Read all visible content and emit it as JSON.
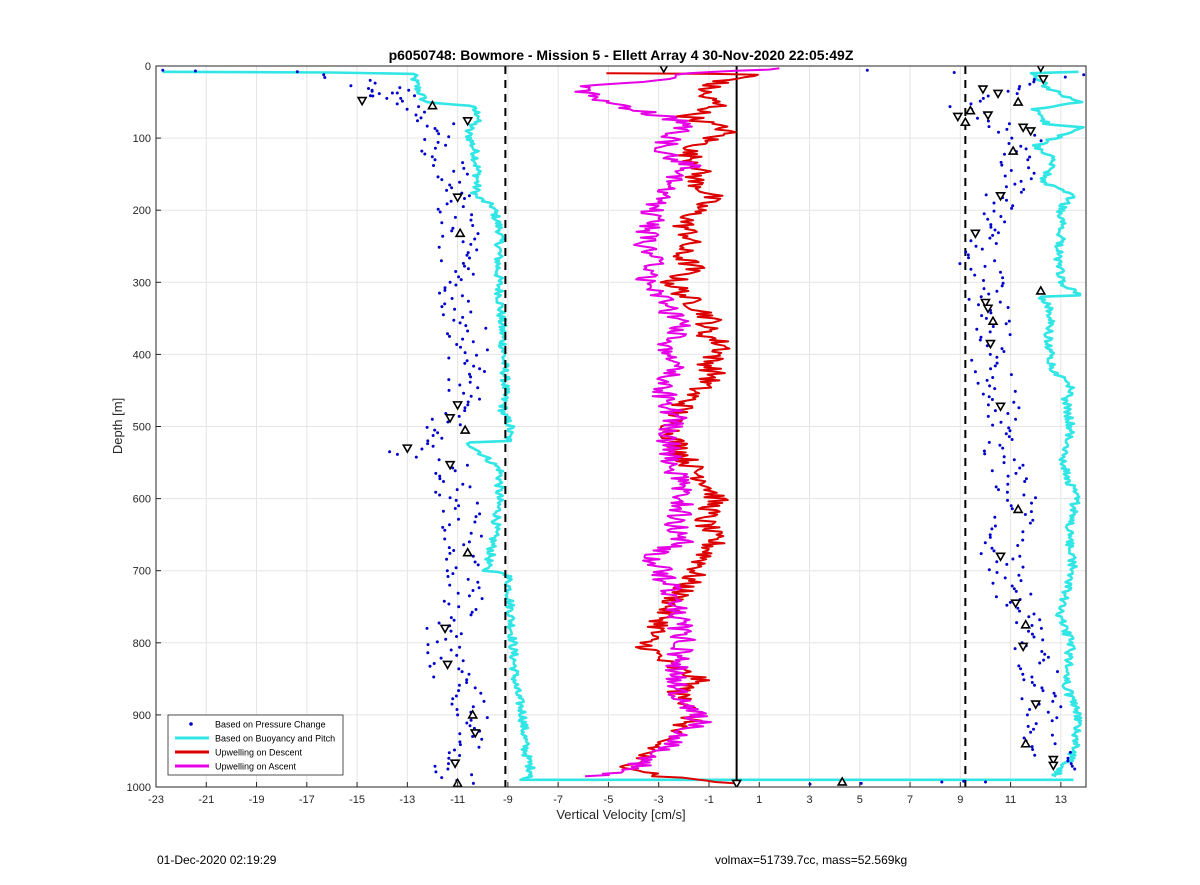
{
  "chart_data": {
    "type": "scatter",
    "title": "p6050748: Bowmore - Mission 5 - Ellett Array 4 30-Nov-2020 22:05:49Z",
    "xlabel": "Vertical Velocity [cm/s]",
    "ylabel": "Depth [m]",
    "xlim": [
      -23,
      14
    ],
    "ylim": [
      1000,
      0
    ],
    "y_reversed": true,
    "grid": true,
    "x_ticks": [
      -23,
      -21,
      -19,
      -17,
      -15,
      -13,
      -11,
      -9,
      -7,
      -5,
      -3,
      -1,
      1,
      3,
      5,
      7,
      9,
      11,
      13
    ],
    "y_ticks": [
      0,
      100,
      200,
      300,
      400,
      500,
      600,
      700,
      800,
      900,
      1000
    ],
    "reference_lines": [
      {
        "x": -9.1,
        "style": "dashed"
      },
      {
        "x": 0.1,
        "style": "solid"
      },
      {
        "x": 9.2,
        "style": "dashed"
      }
    ],
    "legend": {
      "position": "bottom-left",
      "entries": [
        {
          "label": "Based on Pressure Change",
          "color": "#0000cc",
          "marker": "dot"
        },
        {
          "label": "Based on Buoyancy and Pitch",
          "color": "#33e6e6",
          "marker": "line"
        },
        {
          "label": "Upwelling on Descent",
          "color": "#dd0000",
          "marker": "line"
        },
        {
          "label": "Upwelling on Ascent",
          "color": "#e600e6",
          "marker": "line"
        }
      ]
    },
    "series": [
      {
        "name": "Based on Buoyancy and Pitch",
        "color": "#33e6e6",
        "kind": "line",
        "profile": "descent",
        "points": [
          [
            -22.8,
            8
          ],
          [
            -16,
            9
          ],
          [
            -12.8,
            11
          ],
          [
            -12.6,
            30
          ],
          [
            -12.3,
            50
          ],
          [
            -10.5,
            55
          ],
          [
            -10.1,
            70
          ],
          [
            -10.6,
            90
          ],
          [
            -10.3,
            120
          ],
          [
            -10.2,
            150
          ],
          [
            -10.3,
            180
          ],
          [
            -9.6,
            195
          ],
          [
            -9.3,
            230
          ],
          [
            -9.4,
            280
          ],
          [
            -9.3,
            330
          ],
          [
            -9.2,
            380
          ],
          [
            -9.1,
            440
          ],
          [
            -9.2,
            480
          ],
          [
            -8.9,
            500
          ],
          [
            -9.0,
            520
          ],
          [
            -10.6,
            522
          ],
          [
            -10.3,
            530
          ],
          [
            -9.3,
            560
          ],
          [
            -9.4,
            620
          ],
          [
            -9.7,
            680
          ],
          [
            -9.9,
            700
          ],
          [
            -9.0,
            704
          ],
          [
            -8.9,
            750
          ],
          [
            -8.8,
            800
          ],
          [
            -8.7,
            860
          ],
          [
            -8.4,
            900
          ],
          [
            -8.3,
            950
          ],
          [
            -8.0,
            985
          ],
          [
            -8.6,
            990
          ],
          [
            13.5,
            990
          ]
        ]
      },
      {
        "name": "Based on Buoyancy and Pitch",
        "color": "#33e6e6",
        "kind": "line",
        "profile": "ascent",
        "points": [
          [
            12.8,
            985
          ],
          [
            13.4,
            960
          ],
          [
            13.6,
            940
          ],
          [
            13.7,
            900
          ],
          [
            13.2,
            860
          ],
          [
            13.4,
            800
          ],
          [
            12.9,
            760
          ],
          [
            13.5,
            700
          ],
          [
            13.3,
            650
          ],
          [
            13.6,
            600
          ],
          [
            13.1,
            550
          ],
          [
            13.4,
            500
          ],
          [
            13.2,
            460
          ],
          [
            13.5,
            450
          ],
          [
            12.7,
            420
          ],
          [
            12.5,
            380
          ],
          [
            12.6,
            340
          ],
          [
            12.2,
            320
          ],
          [
            13.8,
            318
          ],
          [
            13.0,
            300
          ],
          [
            12.9,
            260
          ],
          [
            13.1,
            220
          ],
          [
            13.0,
            200
          ],
          [
            13.4,
            180
          ],
          [
            12.3,
            160
          ],
          [
            12.7,
            130
          ],
          [
            12.0,
            110
          ],
          [
            13.9,
            85
          ],
          [
            12.4,
            80
          ],
          [
            12.0,
            60
          ],
          [
            13.7,
            50
          ],
          [
            12.5,
            30
          ],
          [
            11.8,
            10
          ],
          [
            13.7,
            8
          ]
        ]
      },
      {
        "name": "Based on Pressure Change",
        "color": "#0000cc",
        "kind": "dots",
        "profile": "descent",
        "points": [
          [
            -22.5,
            6
          ],
          [
            -21.8,
            7
          ],
          [
            -17.5,
            8
          ],
          [
            -15,
            20
          ],
          [
            -14.5,
            35
          ],
          [
            -14,
            45
          ],
          [
            -13.5,
            30
          ],
          [
            -12.5,
            60
          ],
          [
            -11.8,
            80
          ],
          [
            -11.2,
            90
          ],
          [
            -12,
            110
          ],
          [
            -11.5,
            130
          ],
          [
            -11,
            150
          ],
          [
            -11.3,
            180
          ],
          [
            -11,
            210
          ],
          [
            -10.9,
            240
          ],
          [
            -11.1,
            270
          ],
          [
            -11.2,
            300
          ],
          [
            -11,
            330
          ],
          [
            -10.7,
            360
          ],
          [
            -10.5,
            390
          ],
          [
            -10.6,
            420
          ],
          [
            -10.8,
            450
          ],
          [
            -11,
            470
          ],
          [
            -11.3,
            490
          ],
          [
            -12.5,
            520
          ],
          [
            -13,
            535
          ],
          [
            -11.4,
            550
          ],
          [
            -11.2,
            580
          ],
          [
            -10.9,
            610
          ],
          [
            -10.8,
            640
          ],
          [
            -10.9,
            680
          ],
          [
            -10.7,
            720
          ],
          [
            -10.9,
            750
          ],
          [
            -11.6,
            780
          ],
          [
            -11.5,
            810
          ],
          [
            -11.3,
            840
          ],
          [
            -10.8,
            870
          ],
          [
            -10.5,
            900
          ],
          [
            -10.6,
            930
          ],
          [
            -11,
            960
          ],
          [
            -11.2,
            975
          ],
          [
            -10.9,
            995
          ],
          [
            3.7,
            996
          ],
          [
            5.1,
            995
          ],
          [
            8,
            993
          ],
          [
            9.3,
            992
          ],
          [
            10,
            993
          ]
        ]
      },
      {
        "name": "Based on Pressure Change",
        "color": "#0000cc",
        "kind": "dots",
        "profile": "ascent",
        "points": [
          [
            13.1,
            975
          ],
          [
            12.8,
            960
          ],
          [
            12.3,
            940
          ],
          [
            12.4,
            900
          ],
          [
            12.0,
            870
          ],
          [
            12.1,
            840
          ],
          [
            11.7,
            800
          ],
          [
            11.5,
            780
          ],
          [
            11.2,
            740
          ],
          [
            10.9,
            710
          ],
          [
            10.6,
            680
          ],
          [
            10.8,
            650
          ],
          [
            11.4,
            610
          ],
          [
            11.0,
            580
          ],
          [
            10.7,
            550
          ],
          [
            10.5,
            510
          ],
          [
            10.6,
            470
          ],
          [
            10.3,
            440
          ],
          [
            10.1,
            400
          ],
          [
            10.2,
            380
          ],
          [
            10.3,
            350
          ],
          [
            10.0,
            320
          ],
          [
            9.9,
            290
          ],
          [
            9.6,
            250
          ],
          [
            9.9,
            220
          ],
          [
            10.6,
            190
          ],
          [
            11.1,
            160
          ],
          [
            11.3,
            130
          ],
          [
            11.6,
            100
          ],
          [
            10.2,
            80
          ],
          [
            9.5,
            65
          ],
          [
            8.9,
            60
          ],
          [
            10.5,
            45
          ],
          [
            11.3,
            35
          ],
          [
            12.3,
            22
          ],
          [
            13.2,
            12
          ],
          [
            5.3,
            6
          ]
        ]
      },
      {
        "name": "Upwelling on Descent",
        "color": "#dd0000",
        "kind": "line",
        "points": [
          [
            -5.1,
            10
          ],
          [
            -0.7,
            11
          ],
          [
            0.8,
            12
          ],
          [
            -0.9,
            25
          ],
          [
            -1.3,
            40
          ],
          [
            -0.6,
            55
          ],
          [
            -1.8,
            70
          ],
          [
            -0.2,
            90
          ],
          [
            -0.9,
            100
          ],
          [
            -1.9,
            120
          ],
          [
            -1.3,
            140
          ],
          [
            -1.6,
            160
          ],
          [
            -0.9,
            180
          ],
          [
            -1.5,
            200
          ],
          [
            -2.0,
            220
          ],
          [
            -1.7,
            240
          ],
          [
            -2.2,
            260
          ],
          [
            -1.6,
            280
          ],
          [
            -2.5,
            300
          ],
          [
            -1.6,
            330
          ],
          [
            -0.9,
            350
          ],
          [
            -1.2,
            370
          ],
          [
            -0.3,
            390
          ],
          [
            -1.0,
            410
          ],
          [
            -0.8,
            430
          ],
          [
            -1.5,
            450
          ],
          [
            -2.0,
            470
          ],
          [
            -2.4,
            490
          ],
          [
            -2.5,
            510
          ],
          [
            -2.0,
            540
          ],
          [
            -1.6,
            560
          ],
          [
            -1.0,
            580
          ],
          [
            -0.7,
            600
          ],
          [
            -1.2,
            630
          ],
          [
            -0.8,
            660
          ],
          [
            -1.3,
            690
          ],
          [
            -1.9,
            720
          ],
          [
            -2.6,
            750
          ],
          [
            -3.0,
            780
          ],
          [
            -3.6,
            800
          ],
          [
            -2.7,
            830
          ],
          [
            -1.4,
            850
          ],
          [
            -2.3,
            870
          ],
          [
            -1.5,
            890
          ],
          [
            -1.8,
            910
          ],
          [
            -2.7,
            930
          ],
          [
            -3.3,
            950
          ],
          [
            -4.2,
            970
          ],
          [
            -2.9,
            985
          ],
          [
            0.1,
            995
          ]
        ]
      },
      {
        "name": "Upwelling on Ascent",
        "color": "#e600e6",
        "kind": "line",
        "points": [
          [
            -5.8,
            985
          ],
          [
            -4.6,
            980
          ],
          [
            -3.8,
            970
          ],
          [
            -2.9,
            950
          ],
          [
            -2.3,
            930
          ],
          [
            -1.3,
            910
          ],
          [
            -1.8,
            890
          ],
          [
            -2.2,
            870
          ],
          [
            -2.3,
            850
          ],
          [
            -2.2,
            820
          ],
          [
            -2.0,
            800
          ],
          [
            -2.2,
            770
          ],
          [
            -2.4,
            750
          ],
          [
            -2.5,
            730
          ],
          [
            -2.9,
            700
          ],
          [
            -3.3,
            680
          ],
          [
            -2.1,
            660
          ],
          [
            -2.3,
            640
          ],
          [
            -2.0,
            610
          ],
          [
            -2.2,
            580
          ],
          [
            -2.4,
            560
          ],
          [
            -2.6,
            540
          ],
          [
            -2.6,
            510
          ],
          [
            -2.3,
            490
          ],
          [
            -2.8,
            460
          ],
          [
            -2.6,
            430
          ],
          [
            -2.2,
            410
          ],
          [
            -2.6,
            390
          ],
          [
            -2.2,
            360
          ],
          [
            -2.7,
            330
          ],
          [
            -3.5,
            300
          ],
          [
            -3.1,
            270
          ],
          [
            -3.6,
            250
          ],
          [
            -3.3,
            220
          ],
          [
            -3.2,
            200
          ],
          [
            -2.7,
            180
          ],
          [
            -2.5,
            160
          ],
          [
            -1.7,
            140
          ],
          [
            -3.0,
            120
          ],
          [
            -2.5,
            100
          ],
          [
            -1.8,
            80
          ],
          [
            -3.9,
            60
          ],
          [
            -5.5,
            45
          ],
          [
            -6.2,
            30
          ],
          [
            -3.2,
            20
          ],
          [
            -2.0,
            10
          ],
          [
            1.1,
            5
          ],
          [
            1.8,
            3
          ]
        ]
      }
    ],
    "markers_triangle": [
      [
        -14.8,
        48
      ],
      [
        -12.0,
        55
      ],
      [
        -10.6,
        76
      ],
      [
        -11.0,
        182
      ],
      [
        -10.9,
        232
      ],
      [
        -11.0,
        470
      ],
      [
        -11.3,
        488
      ],
      [
        -10.7,
        505
      ],
      [
        -13.0,
        530
      ],
      [
        -11.3,
        553
      ],
      [
        -10.6,
        675
      ],
      [
        -11.5,
        780
      ],
      [
        -11.4,
        830
      ],
      [
        -10.4,
        900
      ],
      [
        -10.3,
        925
      ],
      [
        -11.1,
        967
      ],
      [
        -11.0,
        995
      ],
      [
        -2.8,
        3
      ],
      [
        0.1,
        995
      ],
      [
        4.3,
        993
      ],
      [
        12.2,
        2
      ],
      [
        12.3,
        18
      ],
      [
        11.3,
        50
      ],
      [
        10.5,
        38
      ],
      [
        9.9,
        32
      ],
      [
        9.4,
        62
      ],
      [
        10.1,
        68
      ],
      [
        8.9,
        70
      ],
      [
        9.2,
        78
      ],
      [
        11.5,
        85
      ],
      [
        11.8,
        90
      ],
      [
        11.1,
        118
      ],
      [
        10.6,
        180
      ],
      [
        9.6,
        232
      ],
      [
        12.2,
        312
      ],
      [
        10.0,
        328
      ],
      [
        10.1,
        336
      ],
      [
        10.3,
        354
      ],
      [
        10.2,
        385
      ],
      [
        10.6,
        472
      ],
      [
        11.3,
        615
      ],
      [
        10.6,
        680
      ],
      [
        11.2,
        745
      ],
      [
        11.6,
        775
      ],
      [
        11.5,
        805
      ],
      [
        12.0,
        885
      ],
      [
        11.6,
        940
      ],
      [
        12.7,
        962
      ],
      [
        12.7,
        970
      ]
    ]
  },
  "footer": {
    "left": "01-Dec-2020 02:19:29",
    "right": "volmax=51739.7cc, mass=52.569kg"
  }
}
